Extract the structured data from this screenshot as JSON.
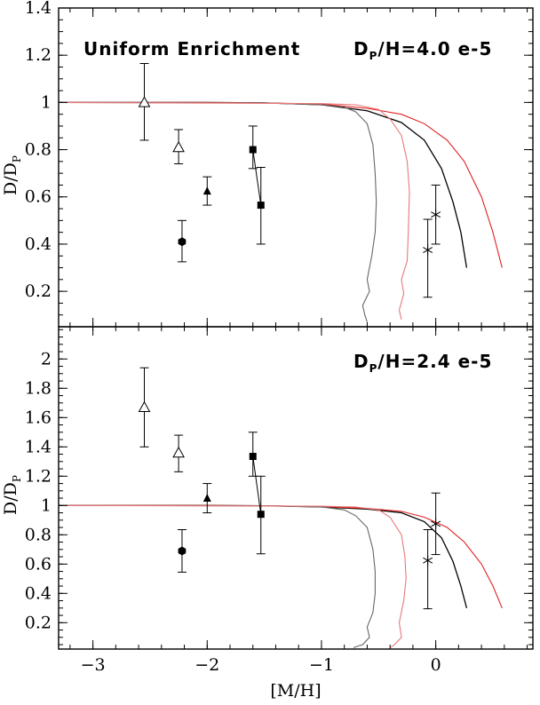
{
  "chart_data": [
    {
      "type": "scatter",
      "panel": "top",
      "title_main": "Uniform Enrichment",
      "title_ratio_pre": "D",
      "title_ratio_sub": "P",
      "title_ratio_post": "/H=4.0 e-5",
      "ylabel_pre": "D/D",
      "ylabel_sub": "P",
      "xlim": [
        -3.3,
        0.85
      ],
      "ylim": [
        0.05,
        1.4
      ],
      "xticks": [
        -3,
        -2,
        -1,
        0
      ],
      "yticks": [
        0.2,
        0.4,
        0.6,
        0.8,
        1,
        1.2,
        1.4
      ],
      "ytick_labels": [
        "0.2",
        "0.4",
        "0.6",
        "0.8",
        "1",
        "1.2",
        "1.4"
      ],
      "curves": [
        {
          "color": "#000000",
          "points": [
            [
              -3.3,
              1.0
            ],
            [
              -2.0,
              1.0
            ],
            [
              -1.5,
              0.998
            ],
            [
              -1.0,
              0.99
            ],
            [
              -0.6,
              0.965
            ],
            [
              -0.3,
              0.915
            ],
            [
              -0.1,
              0.84
            ],
            [
              0.05,
              0.72
            ],
            [
              0.15,
              0.58
            ],
            [
              0.22,
              0.45
            ],
            [
              0.27,
              0.3
            ]
          ]
        },
        {
          "color": "#e02020",
          "points": [
            [
              -3.3,
              1.0
            ],
            [
              -2.0,
              1.0
            ],
            [
              -1.5,
              0.998
            ],
            [
              -1.0,
              0.993
            ],
            [
              -0.6,
              0.975
            ],
            [
              -0.3,
              0.95
            ],
            [
              -0.1,
              0.91
            ],
            [
              0.1,
              0.84
            ],
            [
              0.25,
              0.75
            ],
            [
              0.4,
              0.6
            ],
            [
              0.5,
              0.45
            ],
            [
              0.58,
              0.3
            ]
          ]
        },
        {
          "color": "#666666",
          "points": [
            [
              -3.3,
              1.0
            ],
            [
              -1.5,
              0.998
            ],
            [
              -1.0,
              0.99
            ],
            [
              -0.8,
              0.98
            ],
            [
              -0.7,
              0.96
            ],
            [
              -0.6,
              0.91
            ],
            [
              -0.55,
              0.82
            ],
            [
              -0.53,
              0.7
            ],
            [
              -0.52,
              0.58
            ],
            [
              -0.53,
              0.45
            ],
            [
              -0.56,
              0.35
            ],
            [
              -0.6,
              0.25
            ],
            [
              -0.58,
              0.2
            ],
            [
              -0.64,
              0.14
            ],
            [
              -0.62,
              0.1
            ],
            [
              -0.6,
              0.07
            ]
          ]
        },
        {
          "color": "#e87878",
          "points": [
            [
              -3.3,
              1.0
            ],
            [
              -1.0,
              0.995
            ],
            [
              -0.7,
              0.99
            ],
            [
              -0.5,
              0.97
            ],
            [
              -0.4,
              0.93
            ],
            [
              -0.3,
              0.86
            ],
            [
              -0.25,
              0.75
            ],
            [
              -0.23,
              0.62
            ],
            [
              -0.24,
              0.45
            ],
            [
              -0.25,
              0.33
            ],
            [
              -0.3,
              0.25
            ],
            [
              -0.28,
              0.19
            ],
            [
              -0.32,
              0.12
            ],
            [
              -0.3,
              0.08
            ]
          ]
        }
      ],
      "points": [
        {
          "x": -2.55,
          "y": 1.0,
          "ylo": 0.84,
          "yhi": 1.165,
          "marker": "open-triangle"
        },
        {
          "x": -2.25,
          "y": 0.81,
          "ylo": 0.74,
          "yhi": 0.885,
          "marker": "open-triangle"
        },
        {
          "x": -2.0,
          "y": 0.625,
          "ylo": 0.565,
          "yhi": 0.685,
          "marker": "filled-triangle"
        },
        {
          "x": -2.22,
          "y": 0.41,
          "ylo": 0.325,
          "yhi": 0.5,
          "marker": "filled-hexagon"
        },
        {
          "x": -1.6,
          "y": 0.8,
          "ylo": 0.72,
          "yhi": 0.9,
          "marker": "filled-square"
        },
        {
          "x": -1.53,
          "y": 0.565,
          "ylo": 0.4,
          "yhi": 0.725,
          "marker": "filled-square"
        },
        {
          "x": 0.0,
          "y": 0.525,
          "ylo": 0.4,
          "yhi": 0.65,
          "marker": "asterisk"
        },
        {
          "x": -0.07,
          "y": 0.375,
          "ylo": 0.175,
          "yhi": 0.505,
          "marker": "asterisk"
        }
      ],
      "connectors": [
        {
          "from": [
            -1.6,
            0.8
          ],
          "to": [
            -1.53,
            0.565
          ]
        }
      ]
    },
    {
      "type": "scatter",
      "panel": "bottom",
      "title_ratio_pre": "D",
      "title_ratio_sub": "P",
      "title_ratio_post": "/H=2.4 e-5",
      "ylabel_pre": "D/D",
      "ylabel_sub": "P",
      "xlabel": "[M/H]",
      "xlim": [
        -3.3,
        0.85
      ],
      "ylim": [
        0.02,
        2.22
      ],
      "xticks": [
        -3,
        -2,
        -1,
        0
      ],
      "xtick_labels": [
        "−3",
        "−2",
        "−1",
        "0"
      ],
      "yticks": [
        0.2,
        0.4,
        0.6,
        0.8,
        1,
        1.2,
        1.4,
        1.6,
        1.8,
        2
      ],
      "ytick_labels": [
        "0.2",
        "0.4",
        "0.6",
        "0.8",
        "1",
        "1.2",
        "1.4",
        "1.6",
        "1.8",
        "2"
      ],
      "curves": [
        {
          "color": "#000000",
          "points": [
            [
              -3.3,
              1.0
            ],
            [
              -2.0,
              1.0
            ],
            [
              -1.5,
              0.998
            ],
            [
              -1.0,
              0.99
            ],
            [
              -0.6,
              0.975
            ],
            [
              -0.3,
              0.95
            ],
            [
              -0.1,
              0.89
            ],
            [
              0.05,
              0.78
            ],
            [
              0.15,
              0.62
            ],
            [
              0.22,
              0.45
            ],
            [
              0.27,
              0.3
            ]
          ]
        },
        {
          "color": "#e02020",
          "points": [
            [
              -3.3,
              1.0
            ],
            [
              -2.0,
              1.0
            ],
            [
              -1.5,
              0.998
            ],
            [
              -1.0,
              0.993
            ],
            [
              -0.6,
              0.98
            ],
            [
              -0.3,
              0.96
            ],
            [
              -0.1,
              0.92
            ],
            [
              0.1,
              0.85
            ],
            [
              0.25,
              0.75
            ],
            [
              0.4,
              0.6
            ],
            [
              0.5,
              0.45
            ],
            [
              0.58,
              0.3
            ]
          ]
        },
        {
          "color": "#666666",
          "points": [
            [
              -3.3,
              1.0
            ],
            [
              -1.5,
              0.998
            ],
            [
              -1.0,
              0.99
            ],
            [
              -0.8,
              0.97
            ],
            [
              -0.7,
              0.93
            ],
            [
              -0.6,
              0.85
            ],
            [
              -0.55,
              0.7
            ],
            [
              -0.53,
              0.55
            ],
            [
              -0.53,
              0.4
            ],
            [
              -0.55,
              0.27
            ],
            [
              -0.6,
              0.17
            ],
            [
              -0.58,
              0.1
            ],
            [
              -0.64,
              0.05
            ],
            [
              -0.72,
              0.03
            ]
          ]
        },
        {
          "color": "#e87878",
          "points": [
            [
              -3.3,
              1.0
            ],
            [
              -1.0,
              0.995
            ],
            [
              -0.7,
              0.99
            ],
            [
              -0.5,
              0.97
            ],
            [
              -0.4,
              0.92
            ],
            [
              -0.3,
              0.8
            ],
            [
              -0.27,
              0.65
            ],
            [
              -0.26,
              0.5
            ],
            [
              -0.28,
              0.35
            ],
            [
              -0.32,
              0.2
            ],
            [
              -0.3,
              0.1
            ],
            [
              -0.36,
              0.05
            ],
            [
              -0.4,
              0.03
            ]
          ]
        }
      ],
      "points": [
        {
          "x": -2.55,
          "y": 1.67,
          "ylo": 1.4,
          "yhi": 1.94,
          "marker": "open-triangle"
        },
        {
          "x": -2.25,
          "y": 1.36,
          "ylo": 1.23,
          "yhi": 1.48,
          "marker": "open-triangle"
        },
        {
          "x": -2.0,
          "y": 1.05,
          "ylo": 0.95,
          "yhi": 1.15,
          "marker": "filled-triangle"
        },
        {
          "x": -2.22,
          "y": 0.69,
          "ylo": 0.545,
          "yhi": 0.835,
          "marker": "filled-hexagon"
        },
        {
          "x": -1.6,
          "y": 1.335,
          "ylo": 1.2,
          "yhi": 1.5,
          "marker": "filled-square"
        },
        {
          "x": -1.53,
          "y": 0.94,
          "ylo": 0.67,
          "yhi": 1.2,
          "marker": "filled-square"
        },
        {
          "x": 0.0,
          "y": 0.875,
          "ylo": 0.665,
          "yhi": 1.085,
          "marker": "asterisk"
        },
        {
          "x": -0.07,
          "y": 0.625,
          "ylo": 0.295,
          "yhi": 0.835,
          "marker": "asterisk"
        }
      ],
      "connectors": [
        {
          "from": [
            -1.6,
            1.335
          ],
          "to": [
            -1.53,
            0.94
          ]
        }
      ]
    }
  ]
}
